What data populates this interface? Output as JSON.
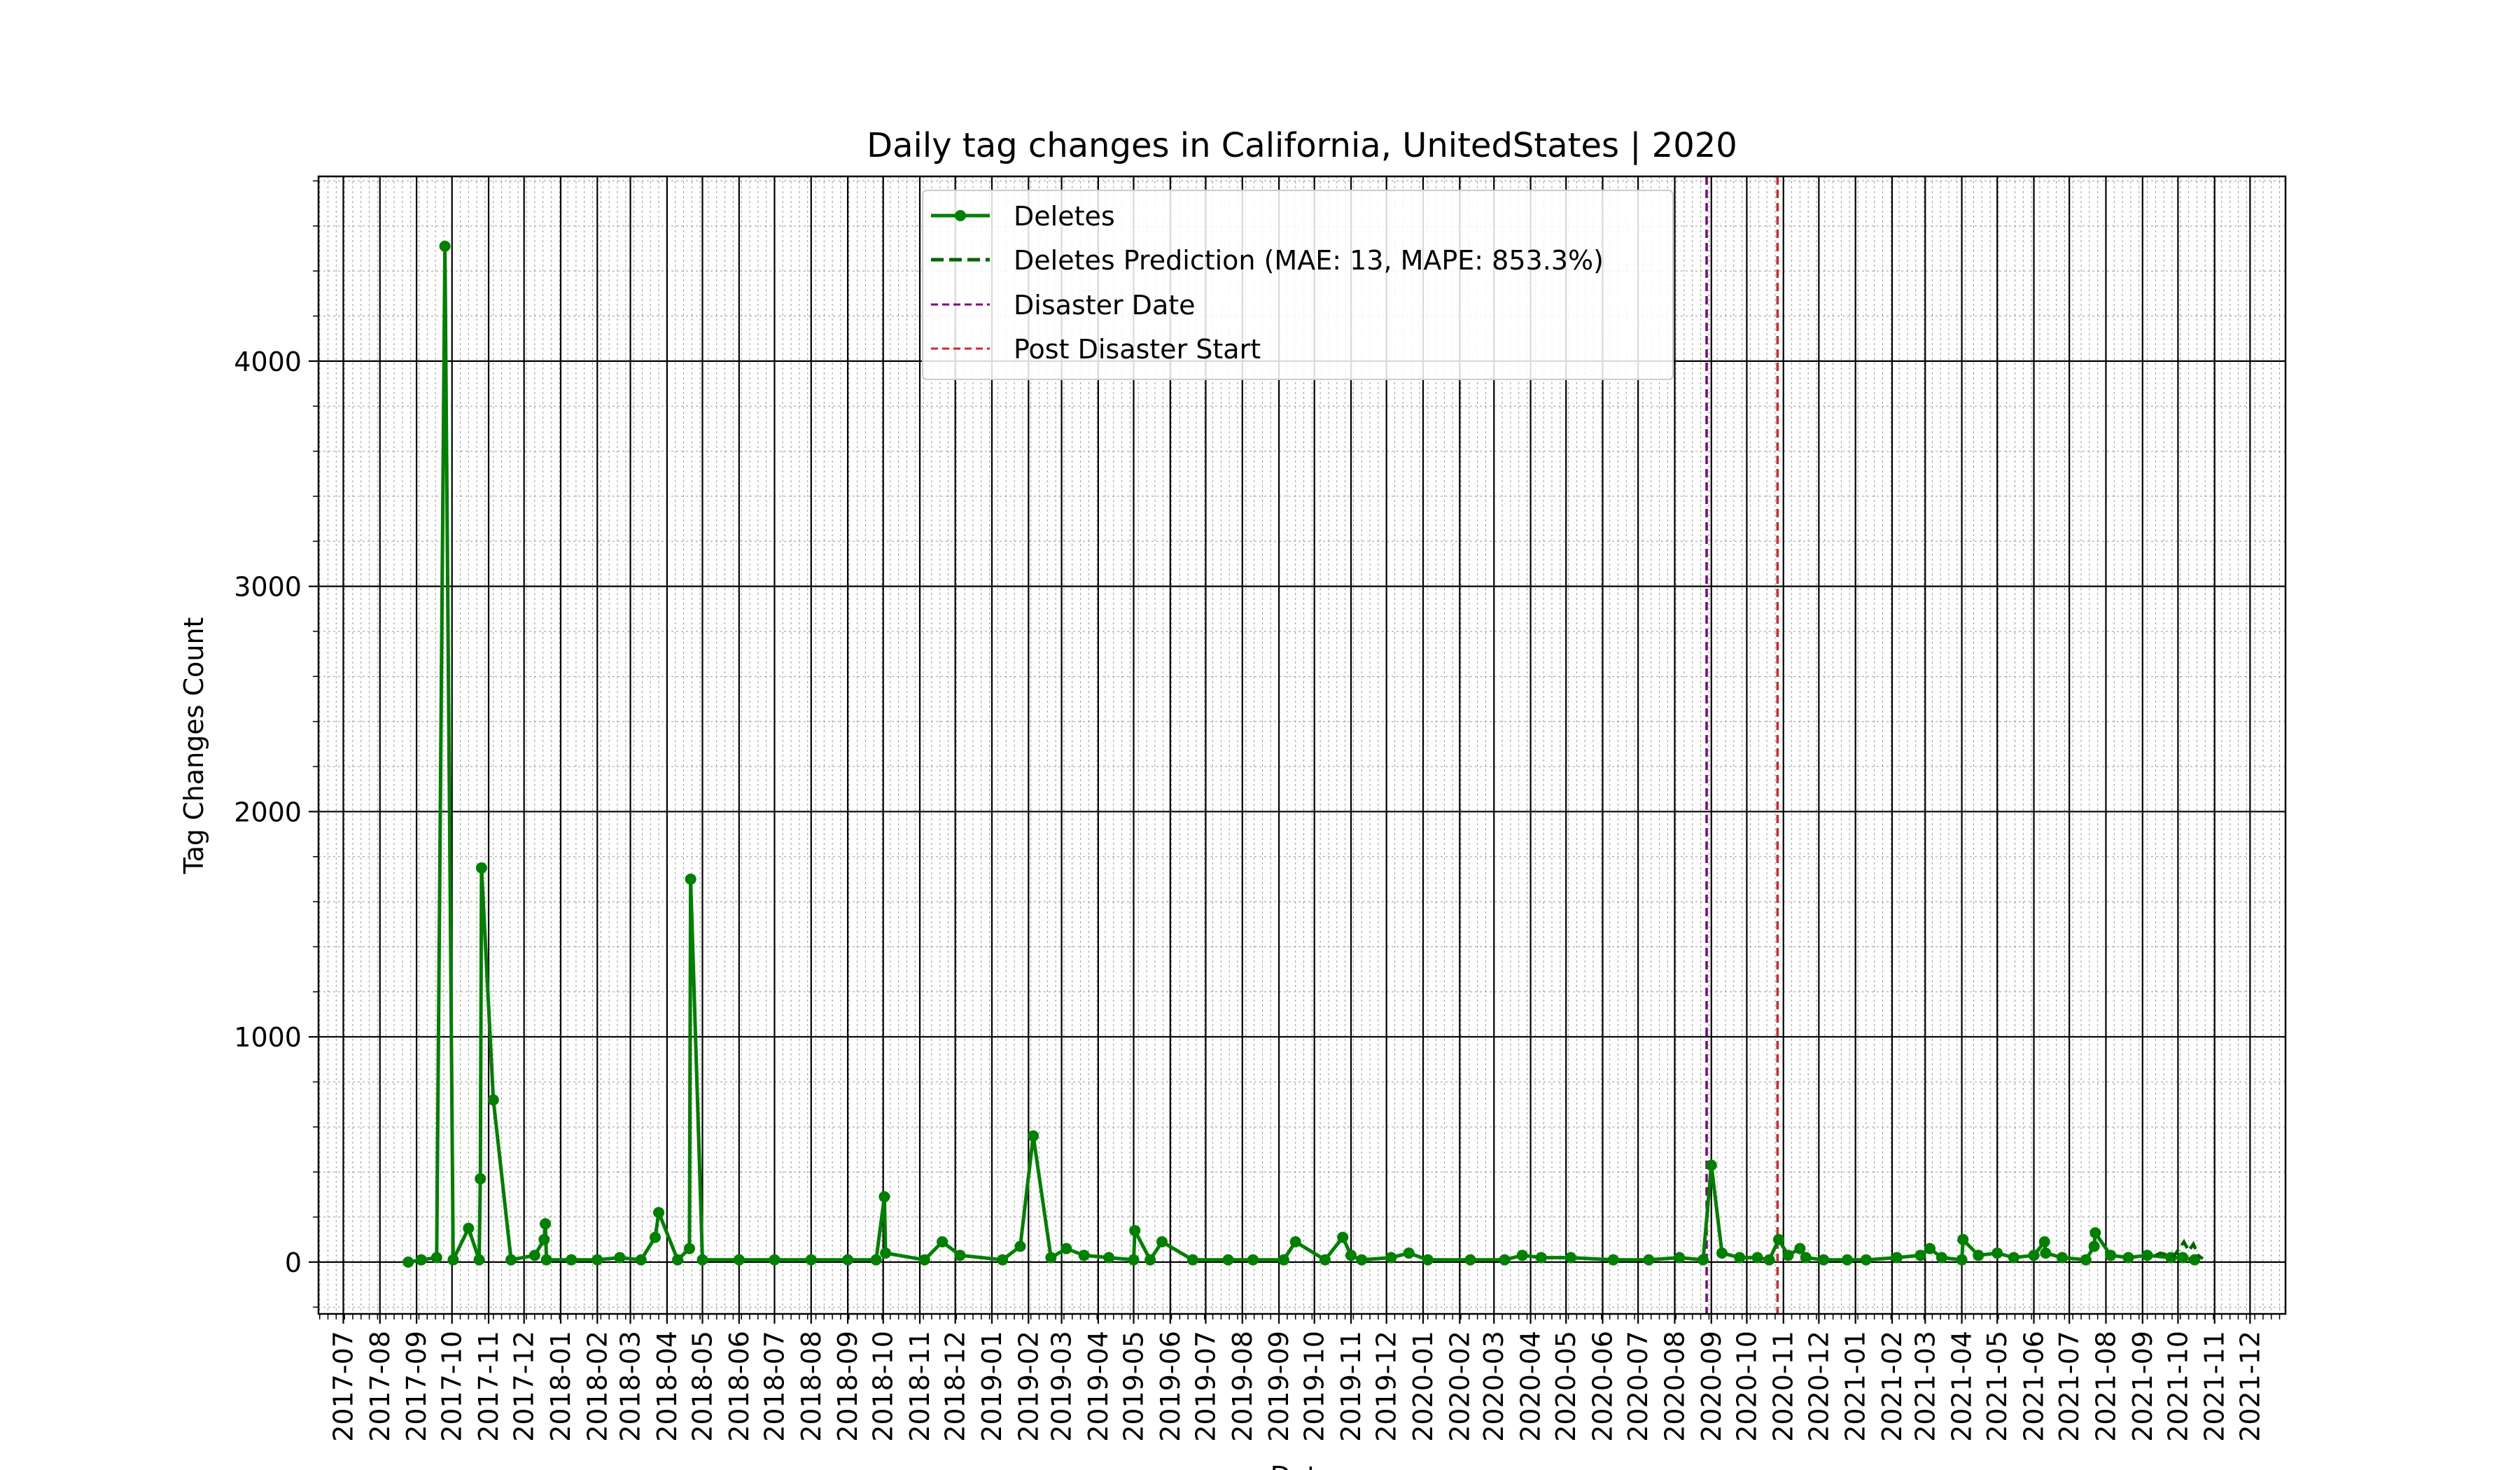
{
  "chart_data": {
    "type": "line",
    "title": "Daily tag changes in California, UnitedStates | 2020",
    "xlabel": "Date",
    "ylabel": "Tag Changes Count",
    "x_scale": "date",
    "xlim": [
      "2017-06-10",
      "2021-12-31"
    ],
    "ylim": [
      -230,
      4820
    ],
    "y_ticks": [
      0,
      1000,
      2000,
      3000,
      4000
    ],
    "x_ticks": [
      "2017-07",
      "2017-08",
      "2017-09",
      "2017-10",
      "2017-11",
      "2017-12",
      "2018-01",
      "2018-02",
      "2018-03",
      "2018-04",
      "2018-05",
      "2018-06",
      "2018-07",
      "2018-08",
      "2018-09",
      "2018-10",
      "2018-11",
      "2018-12",
      "2019-01",
      "2019-02",
      "2019-03",
      "2019-04",
      "2019-05",
      "2019-06",
      "2019-07",
      "2019-08",
      "2019-09",
      "2019-10",
      "2019-11",
      "2019-12",
      "2020-01",
      "2020-02",
      "2020-03",
      "2020-04",
      "2020-05",
      "2020-06",
      "2020-07",
      "2020-08",
      "2020-09",
      "2020-10",
      "2020-11",
      "2020-12",
      "2021-01",
      "2021-02",
      "2021-03",
      "2021-04",
      "2021-05",
      "2021-06",
      "2021-07",
      "2021-08",
      "2021-09",
      "2021-10",
      "2021-11",
      "2021-12"
    ],
    "grid": true,
    "legend_position": "top-center",
    "series": [
      {
        "name": "Deletes",
        "style": "solid line with dot markers",
        "color": "#008000",
        "x": [
          "2017-08-25",
          "2017-09-05",
          "2017-09-18",
          "2017-09-25",
          "2017-10-02",
          "2017-10-15",
          "2017-10-24",
          "2017-10-25",
          "2017-10-26",
          "2017-11-05",
          "2017-11-20",
          "2017-12-10",
          "2017-12-18",
          "2017-12-19",
          "2017-12-20",
          "2018-01-10",
          "2018-02-01",
          "2018-02-20",
          "2018-03-10",
          "2018-03-22",
          "2018-03-25",
          "2018-04-10",
          "2018-04-20",
          "2018-04-21",
          "2018-05-01",
          "2018-06-01",
          "2018-07-01",
          "2018-08-01",
          "2018-09-01",
          "2018-09-25",
          "2018-10-02",
          "2018-10-03",
          "2018-11-05",
          "2018-11-20",
          "2018-12-05",
          "2019-01-10",
          "2019-01-25",
          "2019-02-05",
          "2019-02-20",
          "2019-03-05",
          "2019-03-20",
          "2019-04-10",
          "2019-05-01",
          "2019-05-02",
          "2019-05-15",
          "2019-05-25",
          "2019-06-20",
          "2019-07-20",
          "2019-08-10",
          "2019-09-05",
          "2019-09-15",
          "2019-10-10",
          "2019-10-25",
          "2019-11-01",
          "2019-11-10",
          "2019-12-05",
          "2019-12-20",
          "2020-01-05",
          "2020-02-10",
          "2020-03-10",
          "2020-03-25",
          "2020-04-10",
          "2020-05-05",
          "2020-06-10",
          "2020-07-10",
          "2020-08-05",
          "2020-08-25",
          "2020-09-01",
          "2020-09-10",
          "2020-09-25",
          "2020-10-10",
          "2020-10-20",
          "2020-10-28",
          "2020-11-05",
          "2020-11-15",
          "2020-11-20",
          "2020-12-05",
          "2020-12-25",
          "2021-01-10",
          "2021-02-05",
          "2021-02-25",
          "2021-03-05",
          "2021-03-15",
          "2021-04-01",
          "2021-04-02",
          "2021-04-15",
          "2021-05-01",
          "2021-05-15",
          "2021-06-01",
          "2021-06-10",
          "2021-06-11",
          "2021-06-25",
          "2021-07-15",
          "2021-07-22",
          "2021-07-23",
          "2021-08-05",
          "2021-08-20",
          "2021-09-05",
          "2021-09-25",
          "2021-10-05",
          "2021-10-15"
        ],
        "y": [
          0,
          10,
          20,
          4510,
          10,
          150,
          10,
          370,
          1750,
          720,
          10,
          30,
          100,
          170,
          10,
          10,
          10,
          20,
          10,
          110,
          220,
          10,
          60,
          1700,
          10,
          10,
          10,
          10,
          10,
          10,
          290,
          40,
          10,
          90,
          30,
          10,
          70,
          560,
          20,
          60,
          30,
          20,
          10,
          140,
          10,
          90,
          10,
          10,
          10,
          10,
          90,
          10,
          110,
          30,
          10,
          20,
          40,
          10,
          10,
          10,
          30,
          20,
          20,
          10,
          10,
          20,
          10,
          430,
          40,
          20,
          20,
          10,
          100,
          30,
          60,
          20,
          10,
          10,
          10,
          20,
          30,
          60,
          20,
          10,
          100,
          30,
          40,
          20,
          30,
          90,
          40,
          20,
          10,
          70,
          130,
          30,
          20,
          30,
          20,
          20,
          10
        ]
      },
      {
        "name": "Deletes Prediction (MAE: 13, MAPE: 853.3%)",
        "style": "dashed",
        "color": "#006400",
        "x": [
          "2021-09-12",
          "2021-09-16",
          "2021-09-20",
          "2021-09-24",
          "2021-09-28",
          "2021-10-02",
          "2021-10-06",
          "2021-10-10",
          "2021-10-14",
          "2021-10-18",
          "2021-10-22"
        ],
        "y": [
          30,
          40,
          35,
          20,
          30,
          60,
          90,
          50,
          80,
          30,
          15
        ]
      }
    ],
    "vlines": [
      {
        "name": "Disaster Date",
        "x": "2020-08-28",
        "color": "#800080",
        "style": "dashed"
      },
      {
        "name": "Post Disaster Start",
        "x": "2020-10-27",
        "color": "#d62728",
        "style": "dashed"
      }
    ],
    "legend_colors": {
      "Deletes": "#008000",
      "Deletes Prediction (MAE: 13, MAPE: 853.3%)": "#006400",
      "Disaster Date": "#800080",
      "Post Disaster Start": "#d62728"
    }
  }
}
